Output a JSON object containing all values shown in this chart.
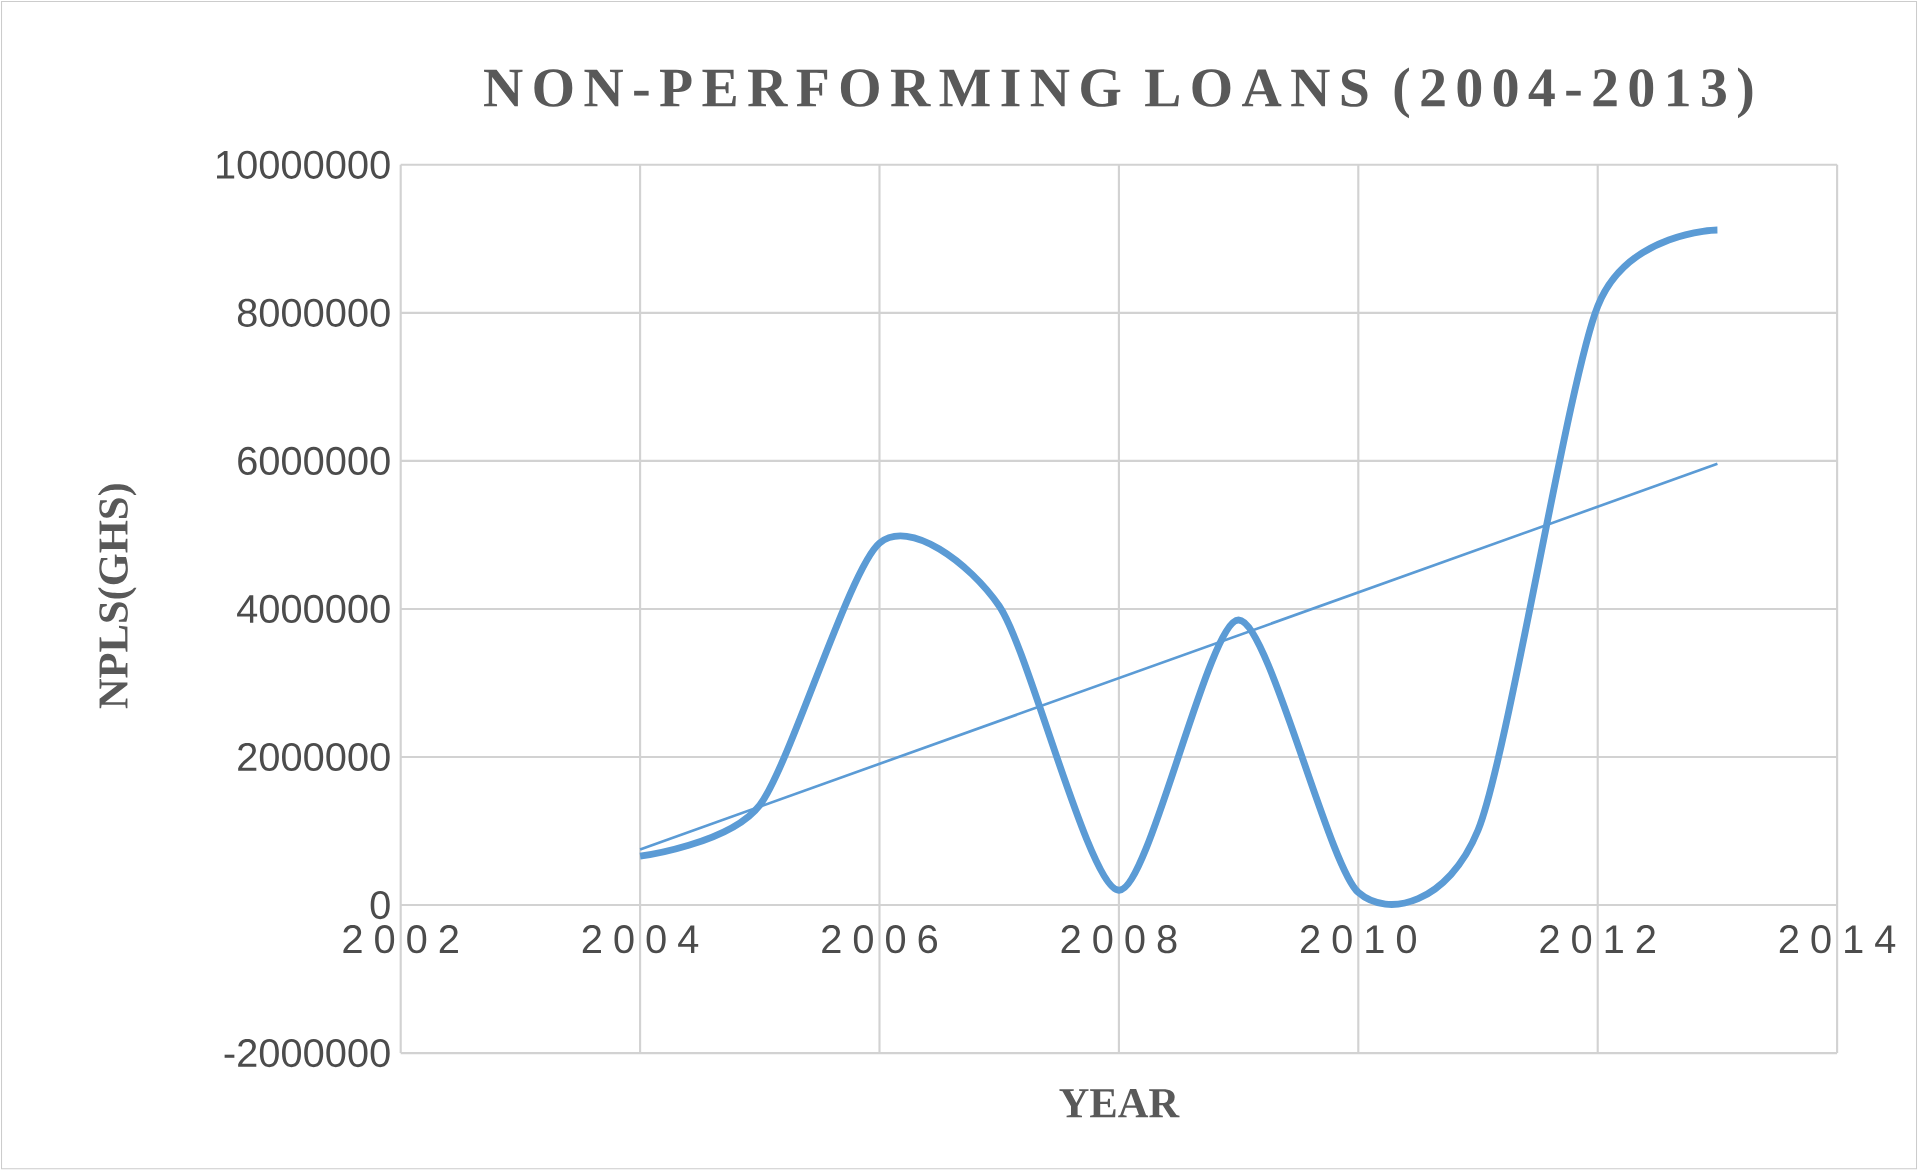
{
  "chart_data": {
    "type": "line",
    "title": "NON-PERFORMING LOANS (2004-2013)",
    "xlabel": "YEAR",
    "ylabel": "NPLS(GHS)",
    "xlim": [
      2002,
      2014
    ],
    "xticks": [
      2002,
      2004,
      2006,
      2008,
      2010,
      2012,
      2014
    ],
    "ylim": [
      -2000000,
      10000000
    ],
    "yticks": [
      -2000000,
      0,
      2000000,
      4000000,
      6000000,
      8000000,
      10000000
    ],
    "grid": true,
    "marker": "none",
    "line_style": "solid",
    "series": [
      {
        "color": "#5b9bd5",
        "x": [
          2004,
          2005,
          2006,
          2007,
          2008,
          2009,
          2010,
          2011,
          2012,
          2013
        ],
        "values": [
          660000,
          1350000,
          4890000,
          4040000,
          200000,
          3850000,
          170000,
          1010000,
          8090000,
          9120000
        ]
      },
      {
        "type": "line",
        "color": "#5b9bd5",
        "x": [
          2004,
          2013
        ],
        "values": [
          750000,
          5960000
        ]
      }
    ]
  }
}
